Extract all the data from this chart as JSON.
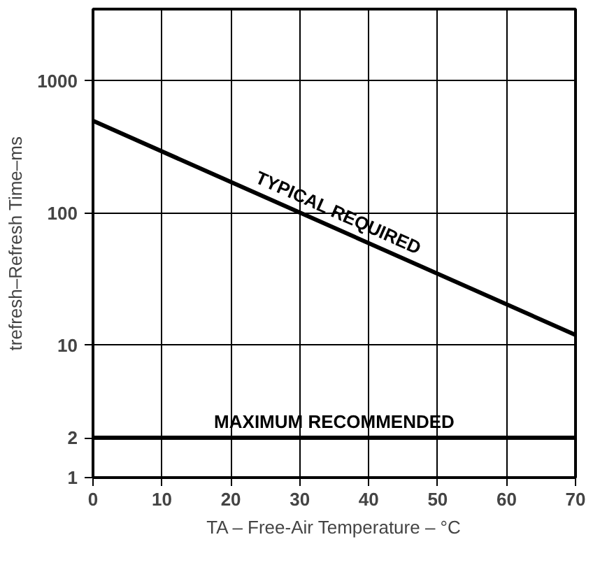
{
  "chart_data": {
    "type": "line",
    "xlabel": "TA – Free-Air Temperature – °C",
    "ylabel": "trefresh–Refresh Time–ms",
    "log": "y",
    "grid": true,
    "legend": false,
    "marker": "none",
    "line_style": "solid",
    "x": [
      0,
      70
    ],
    "xlim": [
      0,
      70
    ],
    "xticks": [
      0,
      10,
      20,
      30,
      40,
      50,
      60,
      70
    ],
    "ylim": [
      1,
      3500
    ],
    "yticks": [
      1,
      2,
      10,
      100,
      1000
    ],
    "series": [
      {
        "name": "TYPICAL REQUIRED",
        "color": "#000000",
        "values": [
          500,
          12
        ]
      },
      {
        "name": "MAXIMUM RECOMMENDED",
        "color": "#000000",
        "values": [
          2,
          2
        ]
      }
    ]
  }
}
